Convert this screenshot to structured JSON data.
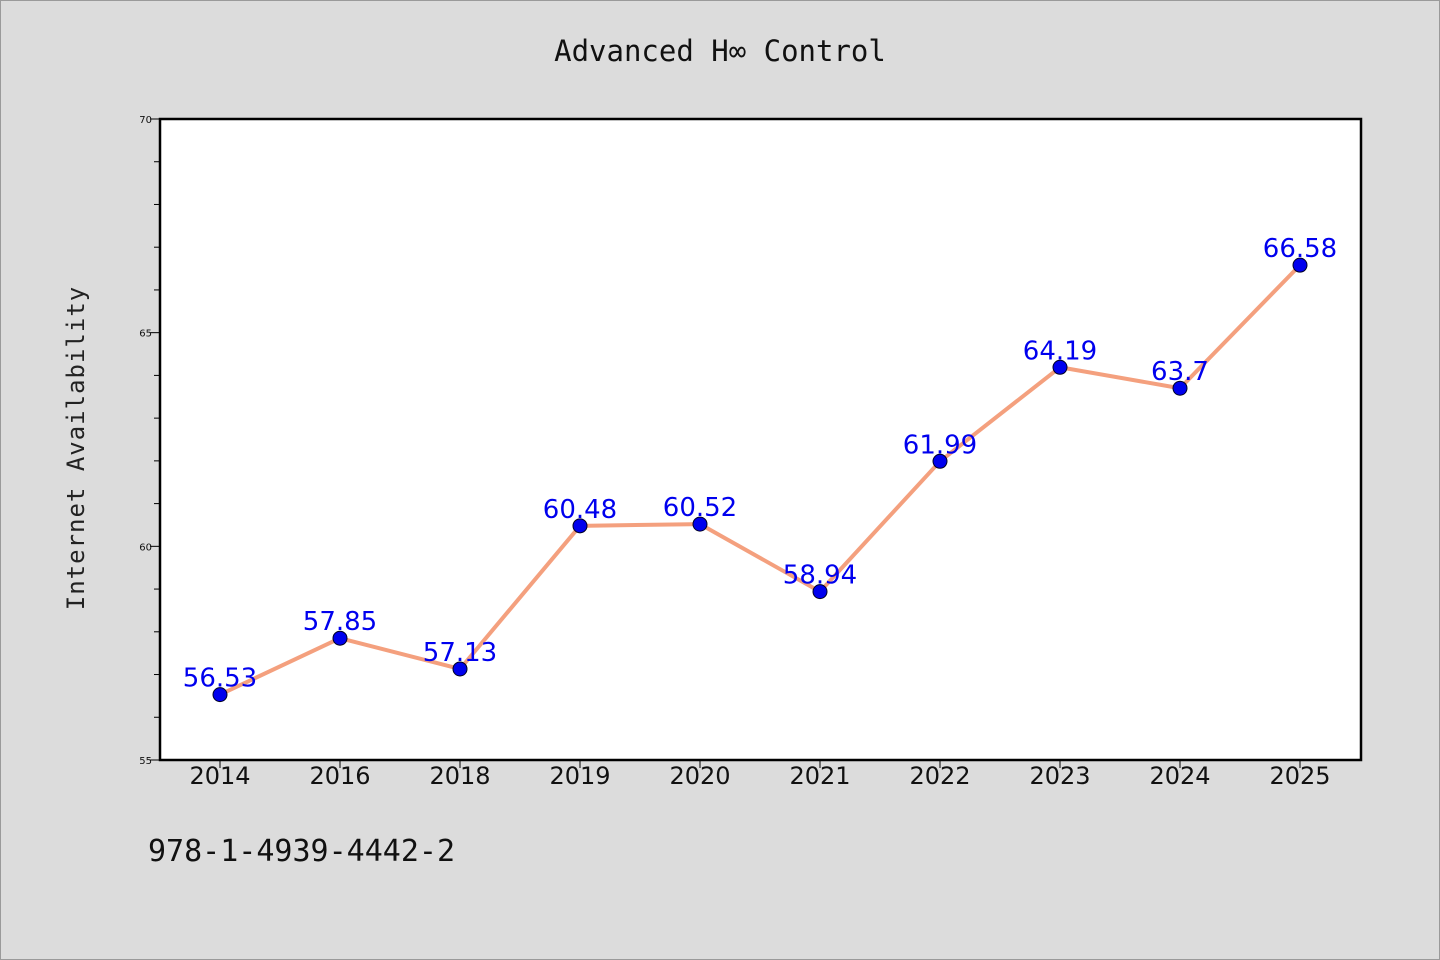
{
  "chart_data": {
    "type": "line",
    "title": "Advanced H∞ Control",
    "xlabel": "",
    "ylabel": "Internet Availability",
    "categories": [
      "2014",
      "2016",
      "2018",
      "2019",
      "2020",
      "2021",
      "2022",
      "2023",
      "2024",
      "2025"
    ],
    "series": [
      {
        "values": [
          56.53,
          57.85,
          57.13,
          60.48,
          60.52,
          58.94,
          61.99,
          64.19,
          63.7,
          66.58
        ]
      }
    ],
    "data_labels": [
      "56.53",
      "57.85",
      "57.13",
      "60.48",
      "60.52",
      "58.94",
      "61.99",
      "64.19",
      "63.7",
      "66.58"
    ],
    "ylim": [
      55,
      70
    ],
    "y_major_ticks": [
      "55",
      "60",
      "65",
      "70"
    ],
    "grid": false,
    "line_color": "#f4a07e",
    "marker_color": "#0000ee",
    "label_color": "#0000ee"
  },
  "footer": {
    "code": "978-1-4939-4442-2"
  }
}
